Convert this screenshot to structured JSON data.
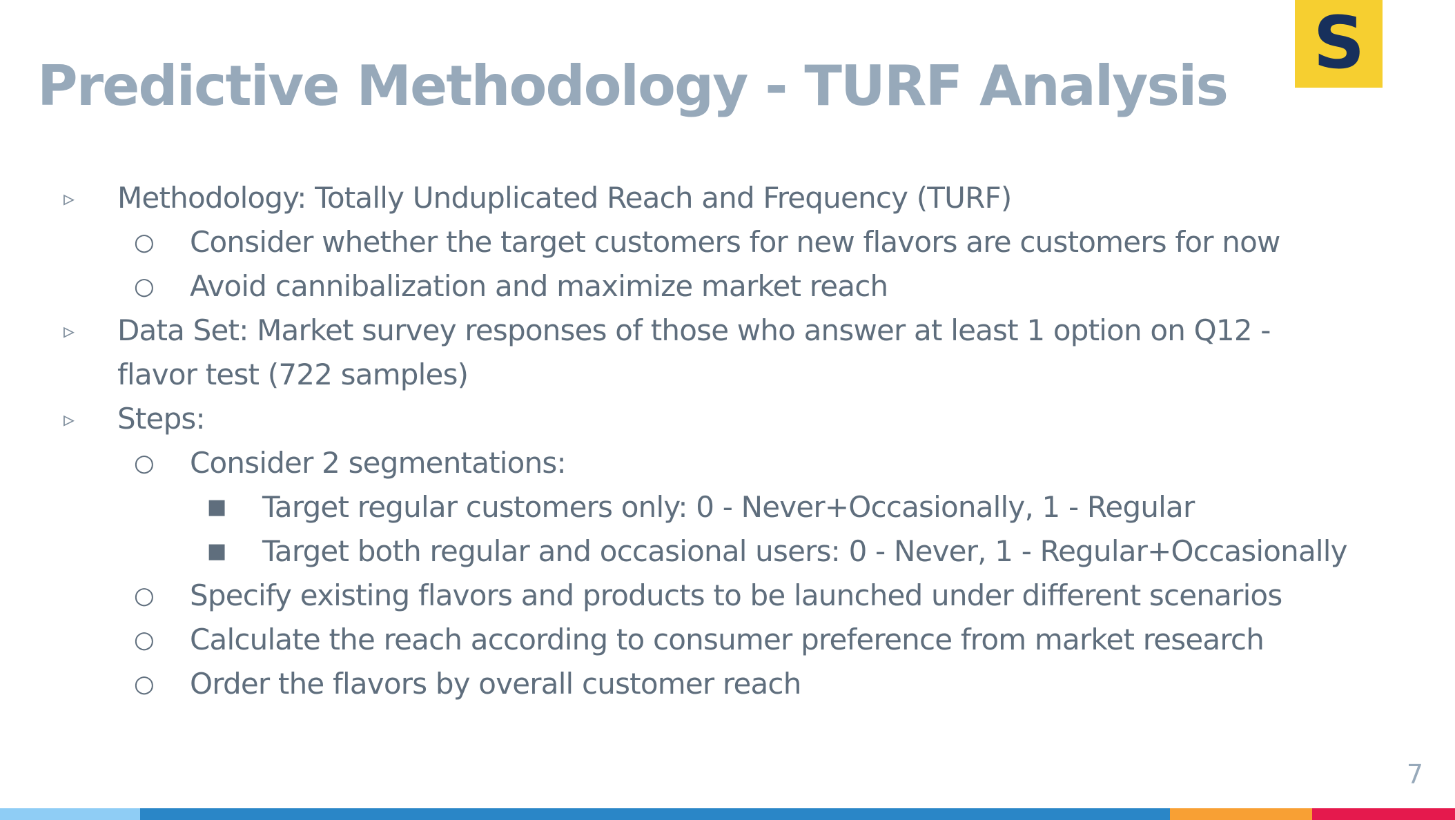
{
  "title": "Predictive Methodology - TURF Analysis",
  "logo": {
    "letter": "S",
    "icon": "brand-s-logo",
    "background": "#f6cf30",
    "foreground": "#17305c"
  },
  "bullets": [
    {
      "level": 1,
      "marker": "▹",
      "text": "Methodology: Totally Unduplicated Reach and Frequency (TURF)"
    },
    {
      "level": 2,
      "marker": "○",
      "text": "Consider whether the target customers for new flavors are customers for now"
    },
    {
      "level": 2,
      "marker": "○",
      "text": "Avoid cannibalization and maximize market reach"
    },
    {
      "level": 1,
      "marker": "▹",
      "text": "Data Set:  Market survey responses of those who answer at least 1 option on Q12 -"
    },
    {
      "level": 1,
      "marker": "",
      "text": "flavor test (722 samples)"
    },
    {
      "level": 1,
      "marker": "▹",
      "text": "Steps:"
    },
    {
      "level": 2,
      "marker": "○",
      "text": "Consider 2 segmentations:"
    },
    {
      "level": 3,
      "marker": "■",
      "text": "Target regular customers only: 0 - Never+Occasionally, 1 - Regular"
    },
    {
      "level": 3,
      "marker": "■",
      "text": "Target both regular and occasional users: 0 - Never, 1 - Regular+Occasionally"
    },
    {
      "level": 2,
      "marker": "○",
      "text": "Specify existing flavors and products to be launched under different scenarios"
    },
    {
      "level": 2,
      "marker": "○",
      "text": "Calculate the reach according to consumer preference from market research"
    },
    {
      "level": 2,
      "marker": "○",
      "text": "Order the flavors by overall customer reach"
    }
  ],
  "page_number": "7",
  "colors": {
    "title": "#97a9ba",
    "body_text": "#5f6e7d",
    "footer_segments": [
      "#8fcdf5",
      "#2a86c7",
      "#f8a034",
      "#e5194d"
    ]
  }
}
